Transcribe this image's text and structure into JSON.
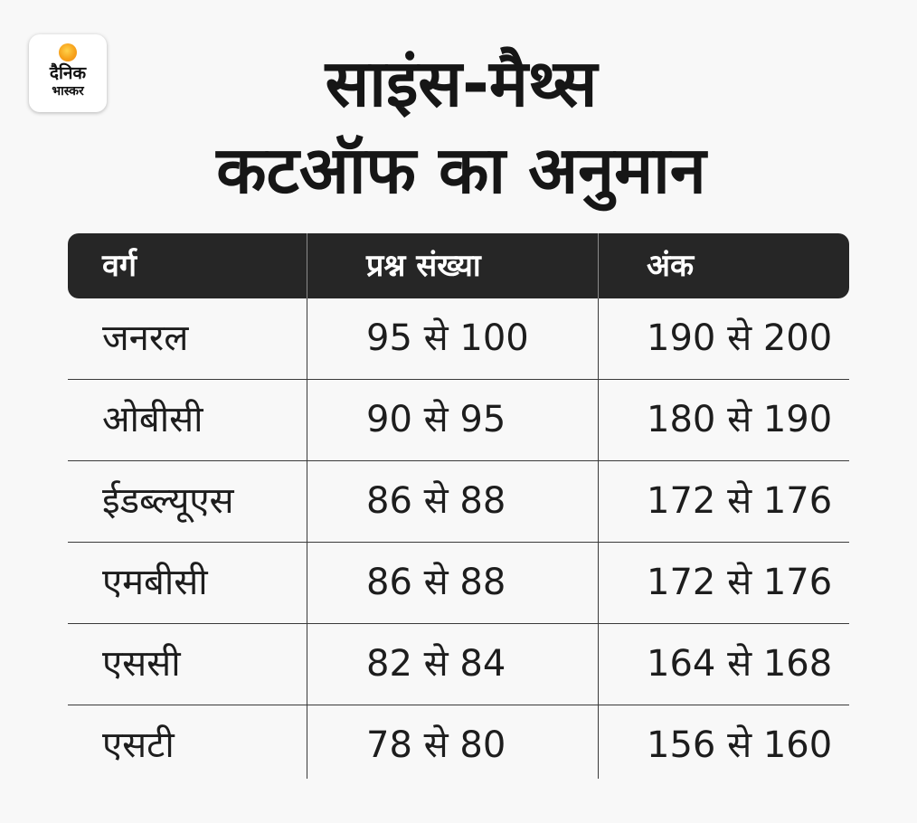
{
  "logo": {
    "line1": "दैनिक",
    "line2": "भास्कर",
    "accent_color": "#f7a21b"
  },
  "title": {
    "line1": "साइंस-मैथ्स",
    "line2": "कटऑफ का अनुमान"
  },
  "table": {
    "headers": [
      "वर्ग",
      "प्रश्न संख्या",
      "अंक"
    ],
    "rows": [
      [
        "जनरल",
        "95 से 100",
        "190 से 200"
      ],
      [
        "ओबीसी",
        "90 से 95",
        "180 से 190"
      ],
      [
        "ईडब्ल्यूएस",
        "86 से 88",
        "172 से 176"
      ],
      [
        "एमबीसी",
        "86 से 88",
        "172 से 176"
      ],
      [
        "एससी",
        "82 से 84",
        "164 से 168"
      ],
      [
        "एसटी",
        "78 से 80",
        "156 से 160"
      ]
    ],
    "header_bg": "#262626"
  }
}
